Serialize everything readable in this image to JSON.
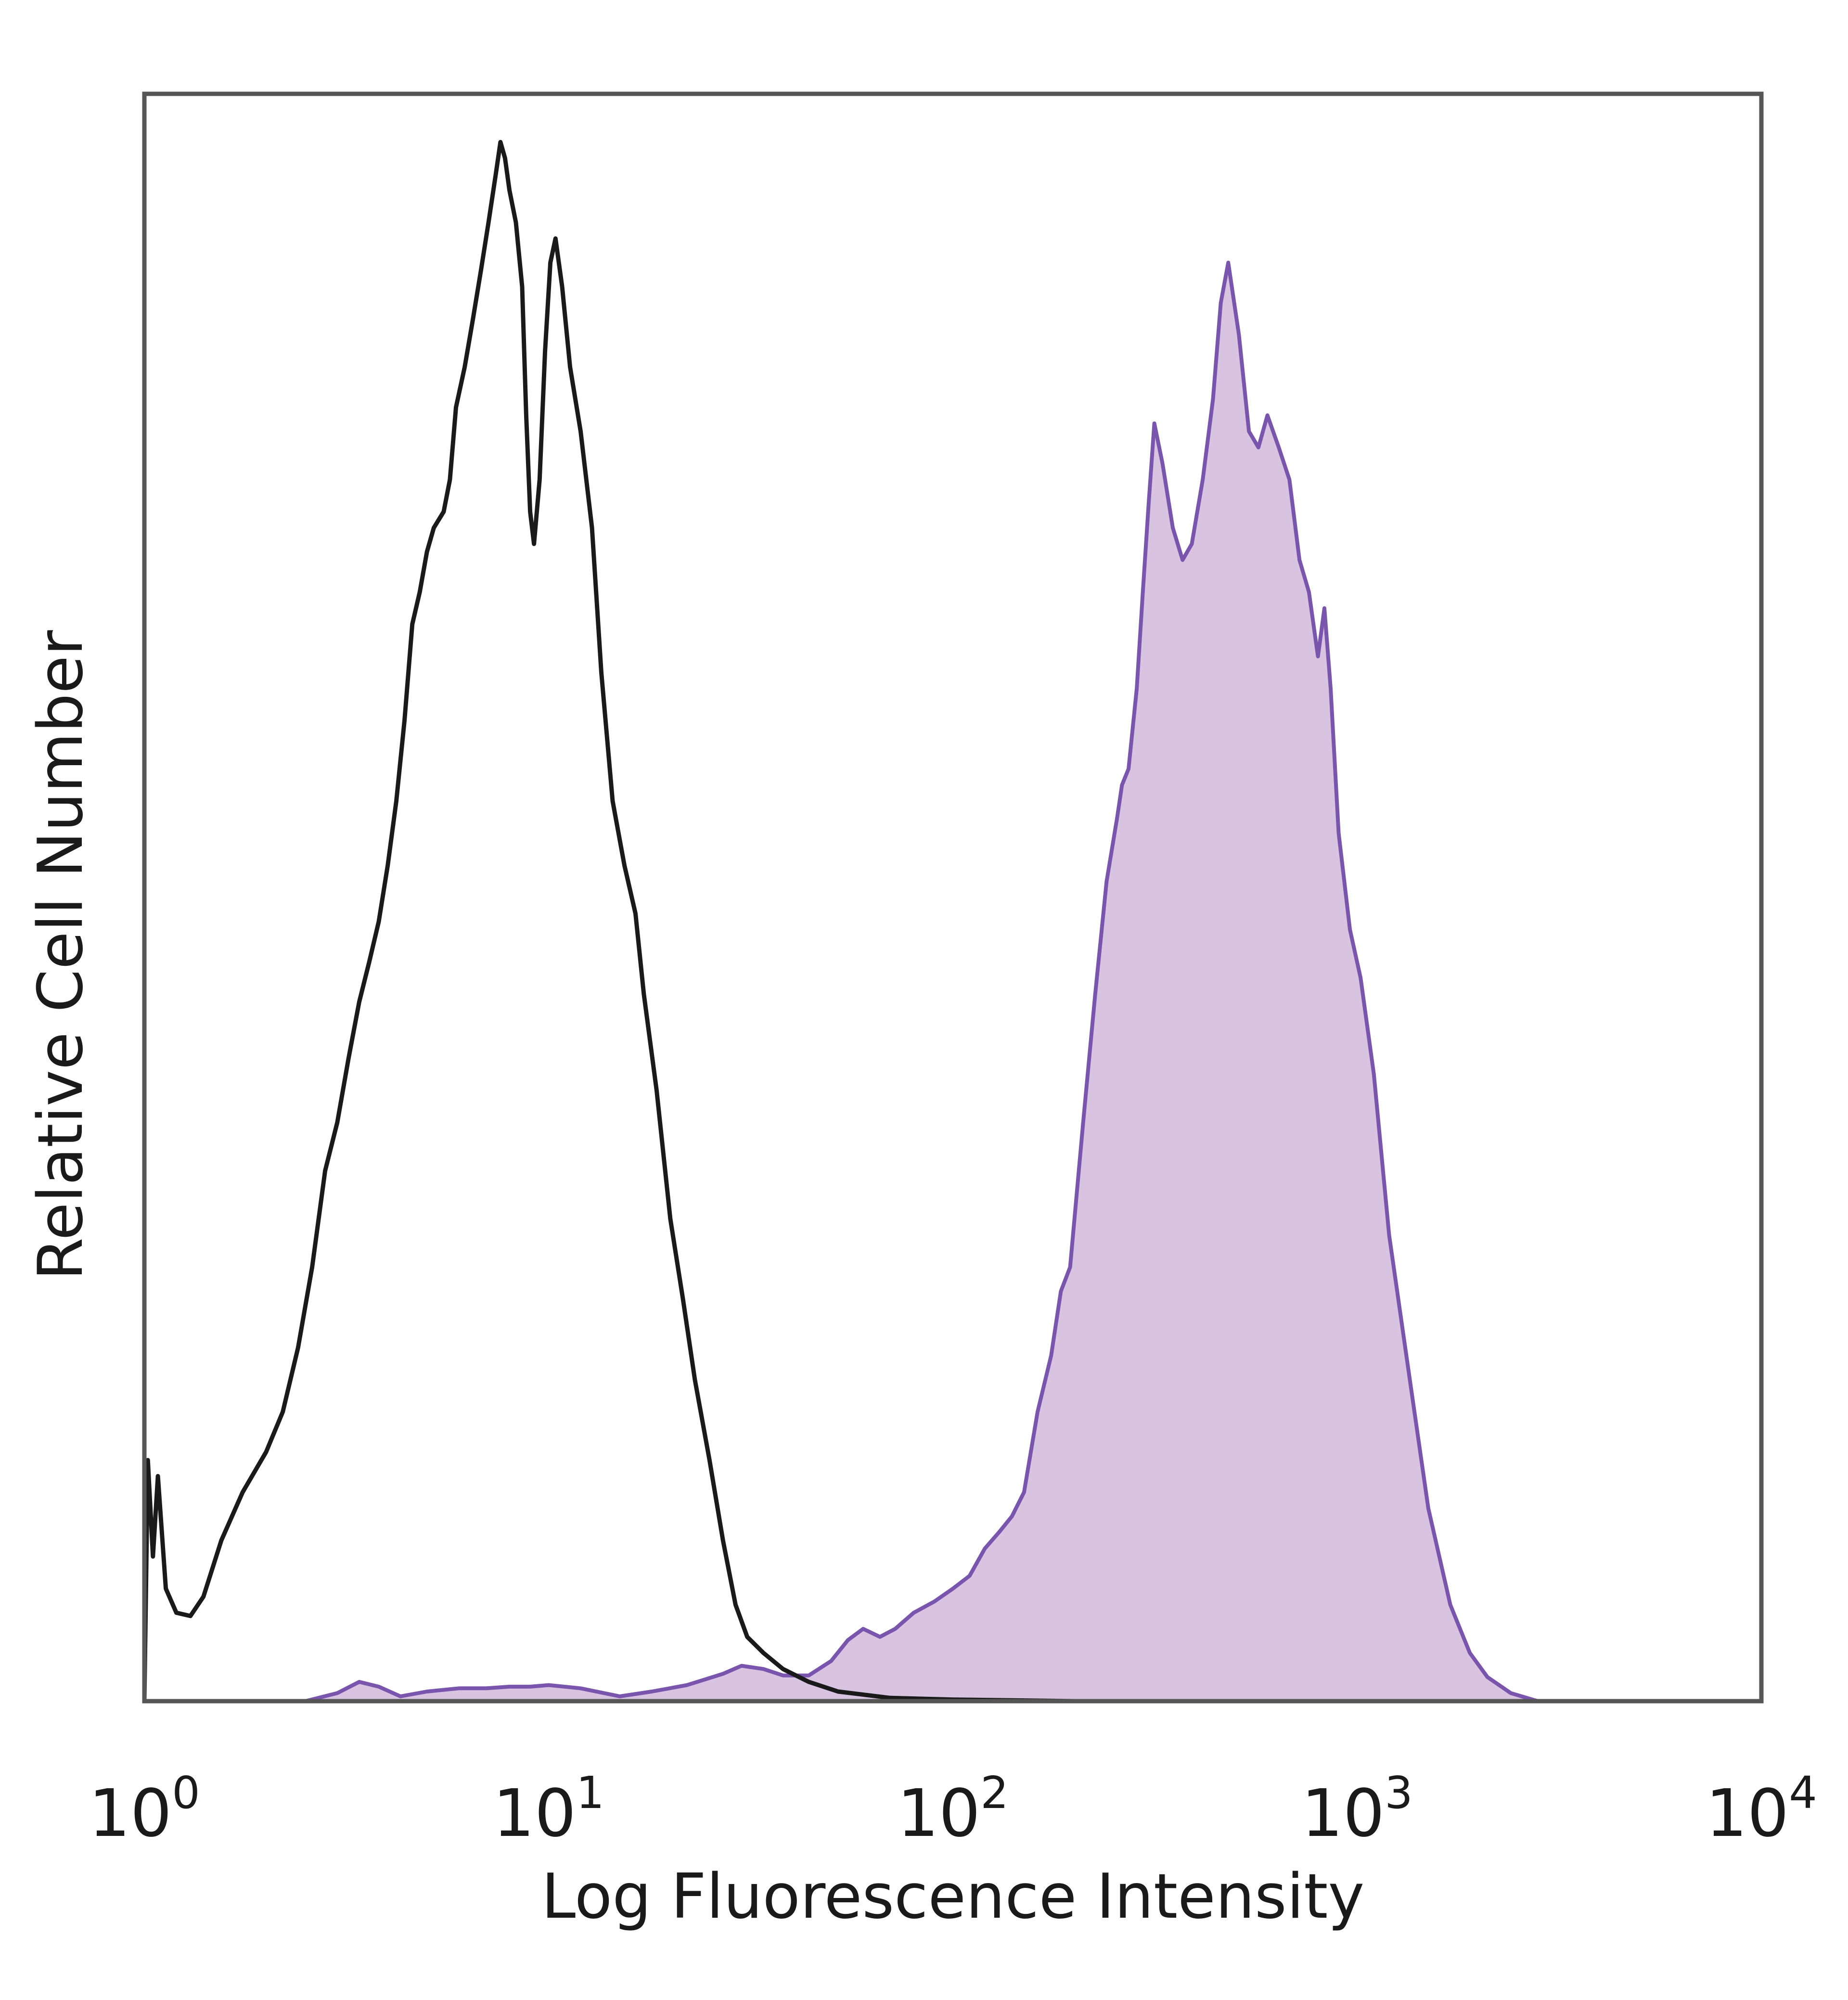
{
  "chart_data": {
    "type": "area",
    "xlabel": "Log Fluorescence Intensity",
    "ylabel": "Relative Cell Number",
    "x_scale": "log",
    "xlim": [
      1,
      10000
    ],
    "ylim": [
      0,
      100
    ],
    "grid": false,
    "legend": "none",
    "x_ticks": [
      {
        "base": "10",
        "exp": "0",
        "value": 1
      },
      {
        "base": "10",
        "exp": "1",
        "value": 10
      },
      {
        "base": "10",
        "exp": "2",
        "value": 100
      },
      {
        "base": "10",
        "exp": "3",
        "value": 1000
      },
      {
        "base": "10",
        "exp": "4",
        "value": 10000
      }
    ],
    "series": [
      {
        "style": "outline",
        "color": "#1a1a1a",
        "points": [
          [
            1.0,
            0
          ],
          [
            1.02,
            15
          ],
          [
            1.05,
            9
          ],
          [
            1.08,
            14
          ],
          [
            1.13,
            7
          ],
          [
            1.2,
            5.5
          ],
          [
            1.3,
            5.3
          ],
          [
            1.4,
            6.5
          ],
          [
            1.55,
            10
          ],
          [
            1.75,
            13
          ],
          [
            2.0,
            15.5
          ],
          [
            2.2,
            18
          ],
          [
            2.4,
            22
          ],
          [
            2.6,
            27
          ],
          [
            2.8,
            33
          ],
          [
            3.0,
            36
          ],
          [
            3.2,
            40
          ],
          [
            3.4,
            43.5
          ],
          [
            3.6,
            46
          ],
          [
            3.8,
            48.5
          ],
          [
            4.0,
            52
          ],
          [
            4.2,
            56
          ],
          [
            4.4,
            61
          ],
          [
            4.6,
            67
          ],
          [
            4.8,
            69
          ],
          [
            5.0,
            71.5
          ],
          [
            5.2,
            73
          ],
          [
            5.5,
            74
          ],
          [
            5.7,
            76
          ],
          [
            5.9,
            80.5
          ],
          [
            6.2,
            83
          ],
          [
            6.5,
            86
          ],
          [
            6.8,
            89
          ],
          [
            7.1,
            92
          ],
          [
            7.4,
            95
          ],
          [
            7.6,
            97
          ],
          [
            7.8,
            96
          ],
          [
            8.0,
            94
          ],
          [
            8.3,
            92
          ],
          [
            8.6,
            88
          ],
          [
            8.8,
            80
          ],
          [
            9.0,
            74
          ],
          [
            9.2,
            72
          ],
          [
            9.5,
            76
          ],
          [
            9.8,
            84
          ],
          [
            10.1,
            89.5
          ],
          [
            10.4,
            91
          ],
          [
            10.8,
            88
          ],
          [
            11.3,
            83
          ],
          [
            12.0,
            79
          ],
          [
            12.8,
            73
          ],
          [
            13.5,
            64
          ],
          [
            14.4,
            56
          ],
          [
            15.4,
            52
          ],
          [
            16.4,
            49
          ],
          [
            17.2,
            44
          ],
          [
            18.5,
            38
          ],
          [
            20.0,
            30
          ],
          [
            21.5,
            25
          ],
          [
            23.0,
            20
          ],
          [
            25.0,
            15
          ],
          [
            27.0,
            10
          ],
          [
            29.0,
            6
          ],
          [
            31.0,
            4
          ],
          [
            34.0,
            3
          ],
          [
            38.0,
            2
          ],
          [
            44.0,
            1.2
          ],
          [
            52.0,
            0.6
          ],
          [
            70.0,
            0.2
          ],
          [
            100.0,
            0.1
          ],
          [
            200.0,
            0
          ],
          [
            10000.0,
            0
          ]
        ]
      },
      {
        "style": "filled",
        "color": "#7a55ad",
        "fill": "#d8c3e0",
        "points": [
          [
            1.0,
            0
          ],
          [
            2.5,
            0
          ],
          [
            3.0,
            0.5
          ],
          [
            3.4,
            1.2
          ],
          [
            3.8,
            0.9
          ],
          [
            4.3,
            0.3
          ],
          [
            5.0,
            0.6
          ],
          [
            6.0,
            0.8
          ],
          [
            7.0,
            0.8
          ],
          [
            8.0,
            0.9
          ],
          [
            9.0,
            0.9
          ],
          [
            10.0,
            1.0
          ],
          [
            12.0,
            0.8
          ],
          [
            15.0,
            0.3
          ],
          [
            18.0,
            0.6
          ],
          [
            22.0,
            1.0
          ],
          [
            27.0,
            1.7
          ],
          [
            30.0,
            2.2
          ],
          [
            34.0,
            2.0
          ],
          [
            38.0,
            1.6
          ],
          [
            44.0,
            1.6
          ],
          [
            50.0,
            2.5
          ],
          [
            55.0,
            3.8
          ],
          [
            60.0,
            4.5
          ],
          [
            66.0,
            4.0
          ],
          [
            72.0,
            4.5
          ],
          [
            80.0,
            5.5
          ],
          [
            90.0,
            6.2
          ],
          [
            100.0,
            7.0
          ],
          [
            110.0,
            7.8
          ],
          [
            120.0,
            9.5
          ],
          [
            130.0,
            10.5
          ],
          [
            140.0,
            11.5
          ],
          [
            150.0,
            13.0
          ],
          [
            162.0,
            18.0
          ],
          [
            175.0,
            21.5
          ],
          [
            185.0,
            25.5
          ],
          [
            195.0,
            27.0
          ],
          [
            210.0,
            36.0
          ],
          [
            225.0,
            44.0
          ],
          [
            240.0,
            51.0
          ],
          [
            255.0,
            55.0
          ],
          [
            262.0,
            57.0
          ],
          [
            272.0,
            58.0
          ],
          [
            285.0,
            63.0
          ],
          [
            295.0,
            69.0
          ],
          [
            305.0,
            74.5
          ],
          [
            315.0,
            79.5
          ],
          [
            330.0,
            77.0
          ],
          [
            350.0,
            73.0
          ],
          [
            370.0,
            71.0
          ],
          [
            390.0,
            72.0
          ],
          [
            415.0,
            76.0
          ],
          [
            440.0,
            81.0
          ],
          [
            460.0,
            87.0
          ],
          [
            480.0,
            89.5
          ],
          [
            510.0,
            85.0
          ],
          [
            540.0,
            79.0
          ],
          [
            570.0,
            78.0
          ],
          [
            600.0,
            80.0
          ],
          [
            640.0,
            78.0
          ],
          [
            680.0,
            76.0
          ],
          [
            720.0,
            71.0
          ],
          [
            760.0,
            69.0
          ],
          [
            800.0,
            65.0
          ],
          [
            830.0,
            68.0
          ],
          [
            860.0,
            63.0
          ],
          [
            900.0,
            54.0
          ],
          [
            960.0,
            48.0
          ],
          [
            1020.0,
            45.0
          ],
          [
            1100.0,
            39.0
          ],
          [
            1200.0,
            29.0
          ],
          [
            1350.0,
            20.0
          ],
          [
            1500.0,
            12.0
          ],
          [
            1700.0,
            6.0
          ],
          [
            1900.0,
            3.0
          ],
          [
            2100.0,
            1.5
          ],
          [
            2400.0,
            0.5
          ],
          [
            2800.0,
            0
          ],
          [
            10000.0,
            0
          ]
        ]
      }
    ]
  }
}
